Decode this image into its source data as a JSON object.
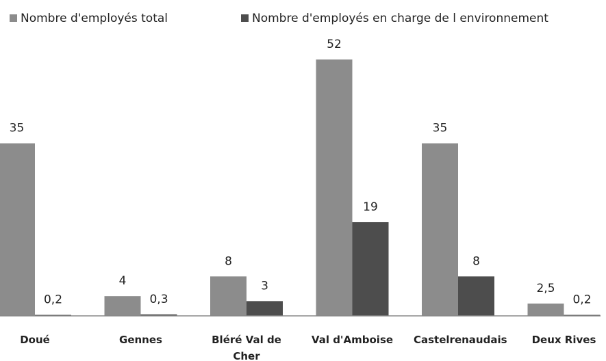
{
  "chart_data": {
    "type": "bar",
    "categories": [
      "Doué",
      "Gennes",
      "Bléré Val de Cher",
      "Val d'Amboise",
      "Castelrenaudais",
      "Deux Rives"
    ],
    "series": [
      {
        "name": "Nombre d'employés total",
        "color": "#8c8c8c",
        "values": [
          35,
          4,
          8,
          52,
          35,
          2.5
        ],
        "value_labels": [
          "35",
          "4",
          "8",
          "52",
          "35",
          "2,5"
        ]
      },
      {
        "name": "Nombre d'employés en charge de l environnement",
        "color": "#4d4d4d",
        "values": [
          0.2,
          0.3,
          3,
          19,
          8,
          0.2
        ],
        "value_labels": [
          "0,2",
          "0,3",
          "3",
          "19",
          "8",
          "0,2"
        ]
      }
    ],
    "legend": "top"
  }
}
